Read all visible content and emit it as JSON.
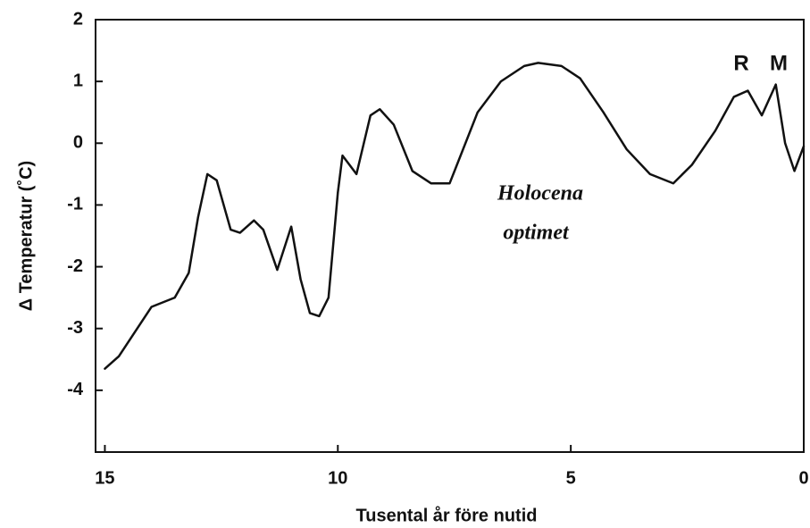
{
  "chart_data": {
    "type": "line",
    "xlabel": "Tusental år före nutid",
    "ylabel": "Δ Temperatur  (˚C)",
    "annotations": [
      "Holocena",
      "optimet",
      "R",
      "M"
    ],
    "x": [
      15,
      14.7,
      14,
      13.5,
      13.2,
      13.0,
      12.8,
      12.6,
      12.3,
      12.1,
      11.8,
      11.6,
      11.3,
      11.0,
      10.8,
      10.6,
      10.4,
      10.2,
      10.0,
      9.9,
      9.6,
      9.3,
      9.1,
      8.8,
      8.4,
      8.0,
      7.6,
      7.0,
      6.5,
      6.0,
      5.7,
      5.2,
      4.8,
      4.3,
      3.8,
      3.3,
      2.8,
      2.4,
      1.9,
      1.5,
      1.2,
      0.9,
      0.6,
      0.4,
      0.2,
      0
    ],
    "series": [
      {
        "color": "#111111",
        "values": [
          -3.65,
          -3.45,
          -2.65,
          -2.5,
          -2.1,
          -1.2,
          -0.5,
          -0.6,
          -1.4,
          -1.45,
          -1.25,
          -1.4,
          -2.05,
          -1.35,
          -2.2,
          -2.75,
          -2.8,
          -2.5,
          -0.8,
          -0.2,
          -0.5,
          0.45,
          0.55,
          0.3,
          -0.45,
          -0.65,
          -0.65,
          0.5,
          1.0,
          1.25,
          1.3,
          1.25,
          1.05,
          0.5,
          -0.1,
          -0.5,
          -0.65,
          -0.35,
          0.2,
          0.75,
          0.85,
          0.45,
          0.95,
          0.0,
          -0.45,
          -0.05
        ]
      }
    ],
    "xlim": [
      15.2,
      0
    ],
    "xticks": [
      15,
      10,
      5,
      0
    ],
    "ylim": [
      -5,
      2
    ],
    "yticks": [
      -4,
      -3,
      -2,
      -1,
      0,
      1,
      2
    ]
  }
}
